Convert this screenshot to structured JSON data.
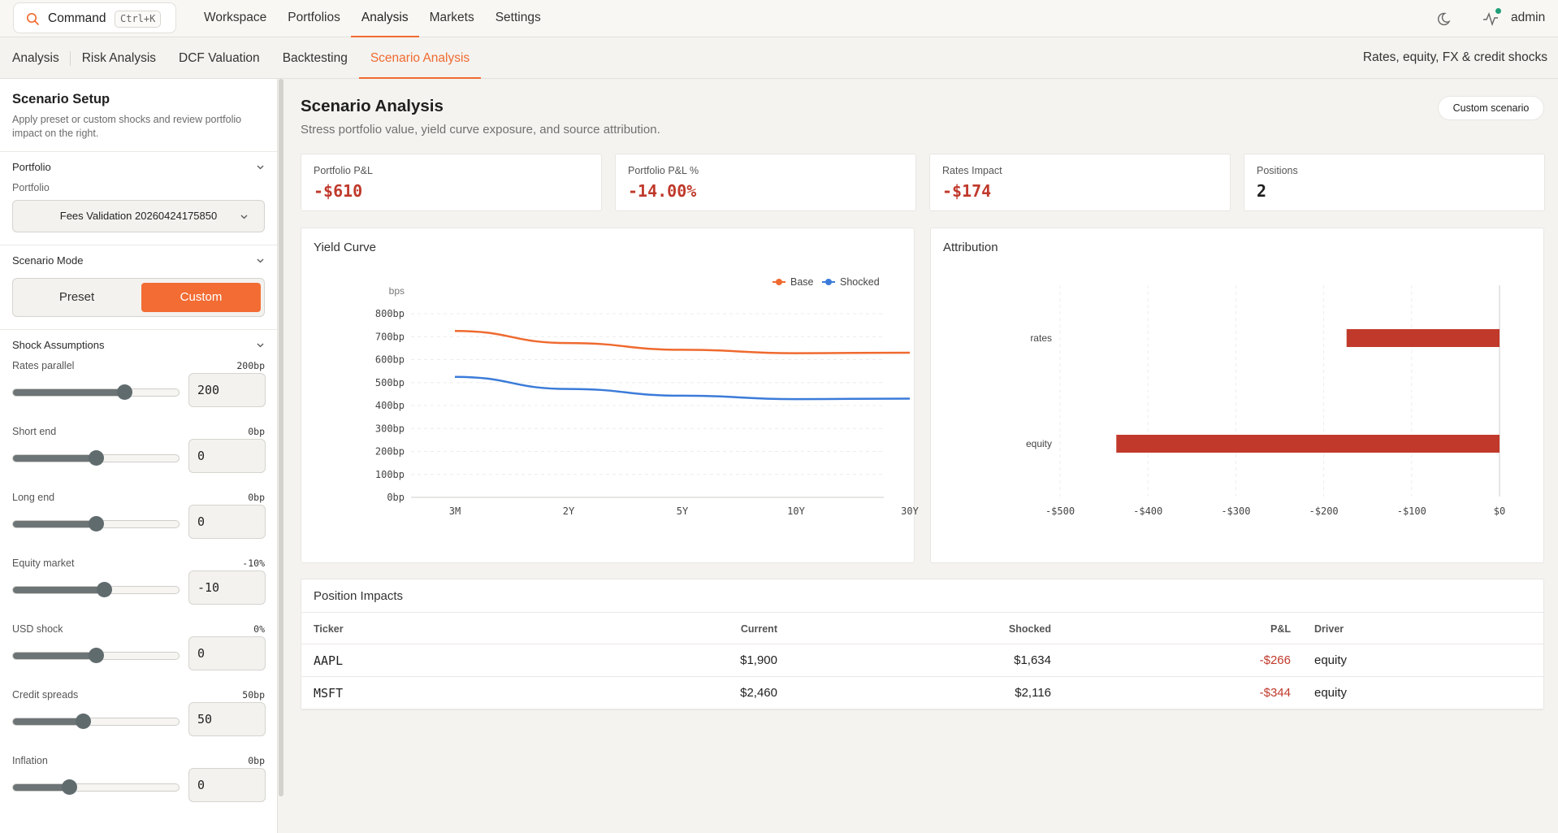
{
  "topbar": {
    "command_label": "Command",
    "command_shortcut": "Ctrl+K",
    "nav": [
      "Workspace",
      "Portfolios",
      "Analysis",
      "Markets",
      "Settings"
    ],
    "active_nav": "Analysis",
    "user": "admin"
  },
  "subnav": {
    "tabs": [
      "Analysis",
      "Risk Analysis",
      "DCF Valuation",
      "Backtesting",
      "Scenario Analysis"
    ],
    "active_tab": "Scenario Analysis",
    "right_text": "Rates, equity, FX & credit shocks"
  },
  "sidebar": {
    "title": "Scenario Setup",
    "description": "Apply preset or custom shocks and review portfolio impact on the right.",
    "portfolio_section": "Portfolio",
    "portfolio_label": "Portfolio",
    "portfolio_value": "Fees Validation 20260424175850",
    "mode_section": "Scenario Mode",
    "mode_preset": "Preset",
    "mode_custom": "Custom",
    "shock_section": "Shock Assumptions",
    "shocks": [
      {
        "label": "Rates parallel",
        "display": "200bp",
        "input": "200",
        "level": 0.67
      },
      {
        "label": "Short end",
        "display": "0bp",
        "input": "0",
        "level": 0.5
      },
      {
        "label": "Long end",
        "display": "0bp",
        "input": "0",
        "level": 0.5
      },
      {
        "label": "Equity market",
        "display": "-10%",
        "input": "-10",
        "level": 0.55
      },
      {
        "label": "USD shock",
        "display": "0%",
        "input": "0",
        "level": 0.5
      },
      {
        "label": "Credit spreads",
        "display": "50bp",
        "input": "50",
        "level": 0.42
      },
      {
        "label": "Inflation",
        "display": "0bp",
        "input": "0",
        "level": 0.34
      }
    ]
  },
  "main": {
    "title": "Scenario Analysis",
    "subtitle": "Stress portfolio value, yield curve exposure, and source attribution.",
    "custom_button": "Custom scenario",
    "stats": [
      {
        "label": "Portfolio P&L",
        "value": "-$610",
        "negative": true
      },
      {
        "label": "Portfolio P&L %",
        "value": "-14.00%",
        "negative": true
      },
      {
        "label": "Rates Impact",
        "value": "-$174",
        "negative": true
      },
      {
        "label": "Positions",
        "value": "2",
        "negative": false
      }
    ],
    "yield_title": "Yield Curve",
    "attribution_title": "Attribution",
    "table": {
      "title": "Position Impacts",
      "columns": [
        "Ticker",
        "Current",
        "Shocked",
        "P&L",
        "Driver"
      ],
      "rows": [
        {
          "ticker": "AAPL",
          "current": "$1,900",
          "shocked": "$1,634",
          "pnl": "-$266",
          "driver": "equity"
        },
        {
          "ticker": "MSFT",
          "current": "$2,460",
          "shocked": "$2,116",
          "pnl": "-$344",
          "driver": "equity"
        }
      ]
    }
  },
  "colors": {
    "accent": "#f26c33",
    "negative": "#c0392b",
    "base": "#ef6a2f",
    "shocked": "#3b7bd9",
    "bar": "#c0392b"
  },
  "chart_data": [
    {
      "type": "line",
      "title": "Yield Curve",
      "ylabel": "bps",
      "categories": [
        "3M",
        "2Y",
        "5Y",
        "10Y",
        "30Y"
      ],
      "yticks": [
        "0bp",
        "100bp",
        "200bp",
        "300bp",
        "400bp",
        "500bp",
        "600bp",
        "700bp",
        "800bp"
      ],
      "ylim": [
        0,
        800
      ],
      "legend": "top-right",
      "series": [
        {
          "name": "Base",
          "values": [
            725,
            672,
            643,
            628,
            630
          ]
        },
        {
          "name": "Shocked",
          "values": [
            525,
            472,
            443,
            428,
            430
          ]
        }
      ]
    },
    {
      "type": "bar",
      "orientation": "horizontal",
      "title": "Attribution",
      "categories": [
        "rates",
        "equity"
      ],
      "values": [
        -174,
        -436
      ],
      "xticks": [
        "-$500",
        "-$400",
        "-$300",
        "-$200",
        "-$100",
        "$0"
      ],
      "xlim": [
        -500,
        0
      ]
    }
  ]
}
